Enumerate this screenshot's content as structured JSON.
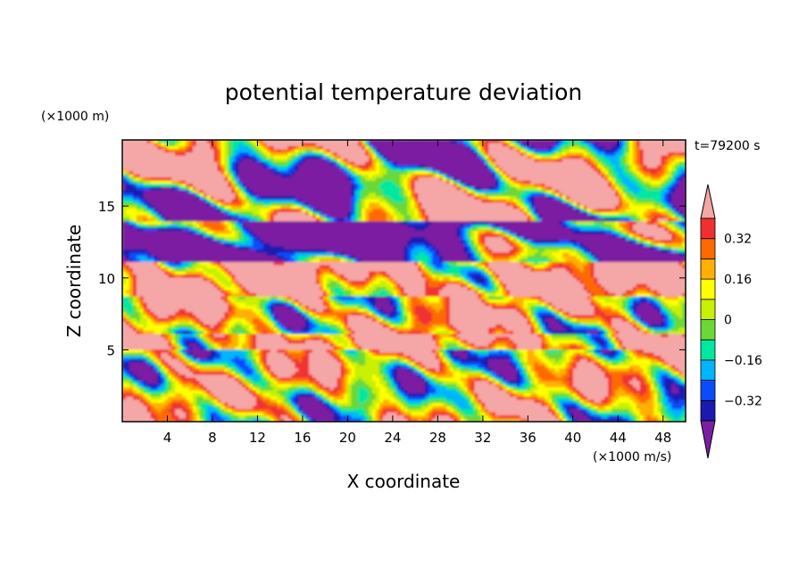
{
  "chart_data": {
    "type": "heatmap",
    "title": "potential temperature deviation",
    "xlabel": "X coordinate",
    "ylabel": "Z coordinate",
    "x_units": "(×1000 m/s)",
    "y_units": "(×1000 m)",
    "time_label": "t=79200 s",
    "xlim": [
      0,
      50
    ],
    "ylim": [
      0,
      19.6
    ],
    "x_ticks": [
      4,
      8,
      12,
      16,
      20,
      24,
      28,
      32,
      36,
      40,
      44,
      48
    ],
    "y_ticks": [
      5,
      10,
      15
    ],
    "colorbar": {
      "labeled_levels": [
        0.32,
        0.16,
        0,
        -0.16,
        -0.32
      ],
      "level_labels": [
        "0.32",
        "0.16",
        "0",
        "−0.16",
        "−0.32"
      ],
      "levels": [
        -0.4,
        -0.32,
        -0.24,
        -0.16,
        -0.08,
        0,
        0.08,
        0.16,
        0.24,
        0.32,
        0.4
      ],
      "colors": [
        "#7b1fa2",
        "#1a1ab0",
        "#0a4cff",
        "#00b4ff",
        "#00e8a0",
        "#6ad838",
        "#c8f000",
        "#ffff00",
        "#ffb000",
        "#ff6a00",
        "#f03030",
        "#f5a6a6"
      ],
      "extend": "both"
    },
    "bands": [
      {
        "z_min": 0,
        "z_max": 5,
        "description_value": 0.1
      },
      {
        "z_min": 5,
        "z_max": 6.2,
        "description_value": 0.45
      },
      {
        "z_min": 6.2,
        "z_max": 8.8,
        "description_value": 0.2
      },
      {
        "z_min": 8.8,
        "z_max": 11,
        "description_value": 0.45
      },
      {
        "z_min": 11,
        "z_max": 14,
        "description_value": -0.45
      },
      {
        "z_min": 14,
        "z_max": 19.6,
        "description_value": 0
      }
    ]
  }
}
